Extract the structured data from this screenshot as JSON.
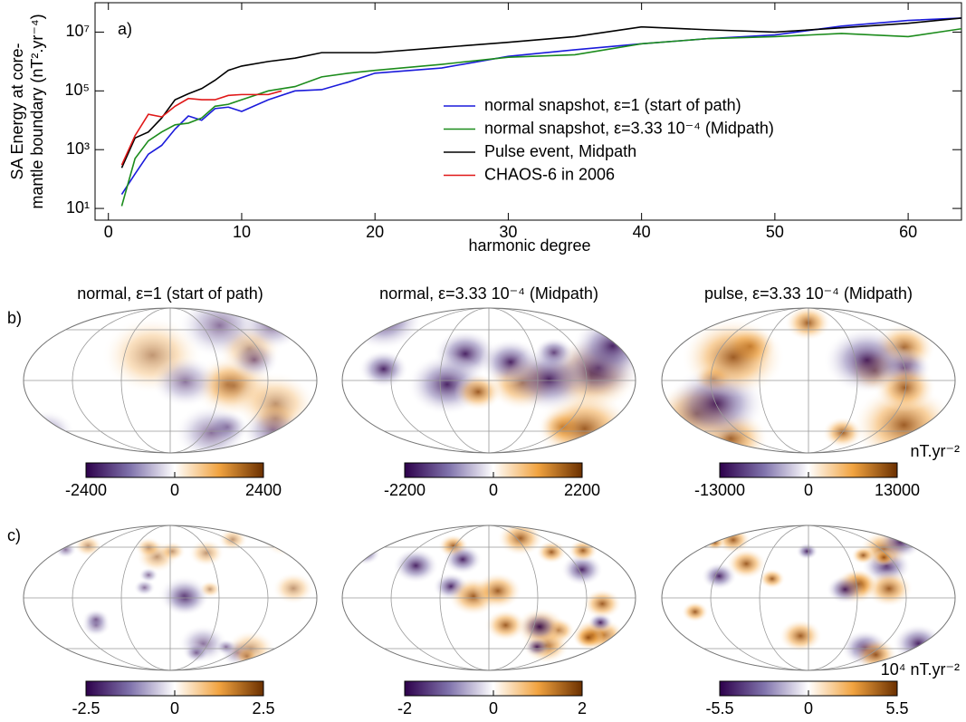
{
  "chart_data": {
    "type": "line",
    "panel_label": "a)",
    "xlabel": "harmonic degree",
    "ylabel": [
      "SA Energy at core-",
      "mantle boundary (nT².yr⁻⁴)"
    ],
    "xlim": [
      -1,
      64
    ],
    "xticks": [
      0,
      10,
      20,
      30,
      40,
      50,
      60
    ],
    "ylim": [
      4,
      100000000
    ],
    "ylog": true,
    "yticks": [
      {
        "value": 10,
        "label": "10¹"
      },
      {
        "value": 1000,
        "label": "10³"
      },
      {
        "value": 100000,
        "label": "10⁵"
      },
      {
        "value": 10000000,
        "label": "10⁷"
      }
    ],
    "legend": "center",
    "series": [
      {
        "name": "normal snapshot, ε=1 (start of path)",
        "color": "#1a1adb",
        "x": [
          1,
          2,
          3,
          4,
          5,
          6,
          7,
          8,
          9,
          10,
          12,
          14,
          16,
          18,
          20,
          25,
          30,
          35,
          40,
          45,
          50,
          55,
          60,
          64
        ],
        "values": [
          30,
          150,
          700,
          1400,
          5000,
          14000,
          10000,
          25000,
          28000,
          20000,
          50000,
          100000,
          110000,
          200000,
          400000,
          600000,
          1500000,
          2500000,
          4000000,
          6000000,
          8000000,
          16000000,
          25000000,
          30000000
        ]
      },
      {
        "name": "normal snapshot, ε=3.33 10⁻⁴ (Midpath)",
        "color": "#1c8c1c",
        "x": [
          1,
          2,
          3,
          4,
          5,
          6,
          7,
          8,
          9,
          10,
          12,
          14,
          16,
          18,
          20,
          25,
          30,
          35,
          40,
          45,
          50,
          55,
          60,
          64
        ],
        "values": [
          12,
          500,
          2000,
          4000,
          7000,
          8000,
          12000,
          30000,
          35000,
          50000,
          100000,
          140000,
          300000,
          400000,
          500000,
          800000,
          1400000,
          1700000,
          4000000,
          6000000,
          7000000,
          9000000,
          7000000,
          13000000
        ]
      },
      {
        "name": "Pulse event, Midpath",
        "color": "#000000",
        "x": [
          1,
          2,
          3,
          4,
          5,
          6,
          7,
          8,
          9,
          10,
          12,
          14,
          16,
          18,
          20,
          25,
          30,
          35,
          40,
          45,
          50,
          55,
          60,
          64
        ],
        "values": [
          240,
          2500,
          4000,
          12000,
          50000,
          80000,
          120000,
          230000,
          500000,
          700000,
          1000000,
          1300000,
          2000000,
          2000000,
          2000000,
          3000000,
          4500000,
          7000000,
          15000000,
          12000000,
          10000000,
          14000000,
          20000000,
          30000000
        ]
      },
      {
        "name": "CHAOS-6 in 2006",
        "color": "#e01818",
        "x": [
          1,
          2,
          3,
          4,
          5,
          6,
          7,
          8,
          9,
          10,
          11,
          12,
          13
        ],
        "values": [
          300,
          3000,
          16000,
          13000,
          30000,
          55000,
          50000,
          50000,
          70000,
          75000,
          75000,
          75000,
          100000
        ]
      }
    ]
  },
  "maps": {
    "rows": [
      {
        "label": "b)",
        "unit": "nT.yr⁻²",
        "panels": [
          {
            "title": "normal, ε=1 (start of path)",
            "colorbar": {
              "lim": [
                -2400,
                2400
              ],
              "ticks": [
                -2400,
                0,
                2400
              ]
            }
          },
          {
            "title": "normal, ε=3.33 10⁻⁴ (Midpath)",
            "colorbar": {
              "lim": [
                -2200,
                2200
              ],
              "ticks": [
                -2200,
                0,
                2200
              ]
            }
          },
          {
            "title": "pulse, ε=3.33 10⁻⁴ (Midpath)",
            "colorbar": {
              "lim": [
                -13000,
                13000
              ],
              "ticks": [
                -13000,
                0,
                13000
              ]
            }
          }
        ]
      },
      {
        "label": "c)",
        "unit": "10⁴ nT.yr⁻²",
        "panels": [
          {
            "colorbar": {
              "lim": [
                -2.5,
                2.5
              ],
              "ticks": [
                -2.5,
                0,
                2.5
              ]
            }
          },
          {
            "colorbar": {
              "lim": [
                -2,
                2
              ],
              "ticks": [
                -2,
                0,
                2
              ]
            }
          },
          {
            "colorbar": {
              "lim": [
                -5.5,
                5.5
              ],
              "ticks": [
                -5.5,
                0,
                5.5
              ]
            }
          }
        ]
      }
    ]
  }
}
